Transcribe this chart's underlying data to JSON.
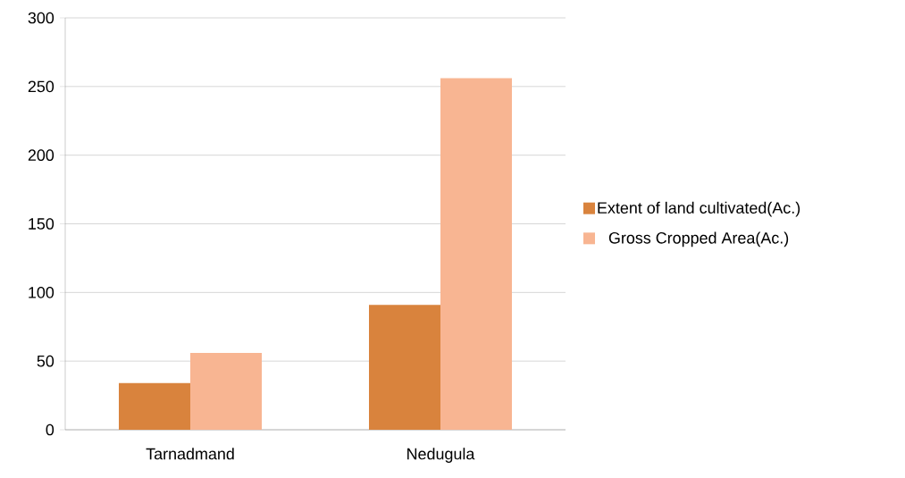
{
  "chart_data": {
    "type": "bar",
    "categories": [
      "Tarnadmand",
      "Nedugula"
    ],
    "series": [
      {
        "name": "Extent of land cultivated(Ac.)",
        "color": "#d9833d",
        "values": [
          34,
          91
        ]
      },
      {
        "name": "Gross Cropped Area(Ac.)",
        "color": "#f8b592",
        "values": [
          56,
          256
        ]
      }
    ],
    "ylim": [
      0,
      300
    ],
    "yticks": [
      0,
      50,
      100,
      150,
      200,
      250,
      300
    ],
    "grid": "y",
    "legend": "right"
  }
}
